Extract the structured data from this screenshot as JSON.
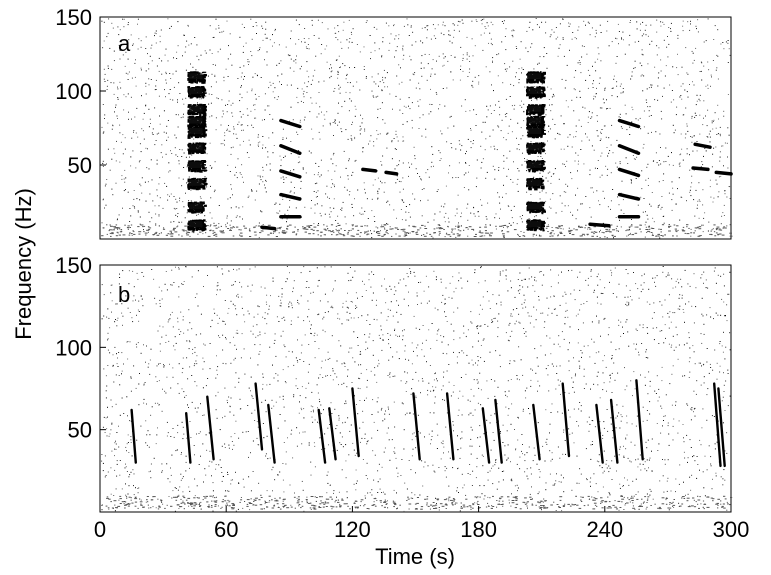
{
  "chart_data": [
    {
      "type": "heatmap",
      "panel_label": "a",
      "ylabel": "Frequency (Hz)",
      "xlabel": "Time (s)",
      "xlim": [
        0,
        300
      ],
      "ylim": [
        0,
        150
      ],
      "yticks": [
        "50",
        "100",
        "150"
      ],
      "ytick_values": [
        50,
        100,
        150
      ],
      "xticks": [],
      "grid": false,
      "colormap": "white-to-black",
      "bursts": [
        {
          "t": 45.5,
          "t_width": 8,
          "f_bands": [
            10,
            22,
            38,
            50,
            62,
            73,
            80,
            88,
            100,
            110
          ],
          "strength": 0.9
        },
        {
          "t": 206.5,
          "t_width": 8,
          "f_bands": [
            10,
            22,
            38,
            50,
            62,
            73,
            80,
            88,
            100,
            110
          ],
          "strength": 0.9
        }
      ],
      "calls": [
        {
          "t0": 77,
          "t1": 83,
          "f0": 8,
          "f1": 7
        },
        {
          "t0": 86,
          "t1": 95,
          "f0": 15,
          "f1": 15
        },
        {
          "t0": 86,
          "t1": 95,
          "f0": 30,
          "f1": 27
        },
        {
          "t0": 86,
          "t1": 95,
          "f0": 46,
          "f1": 42
        },
        {
          "t0": 86,
          "t1": 95,
          "f0": 63,
          "f1": 58
        },
        {
          "t0": 86,
          "t1": 95,
          "f0": 80,
          "f1": 76
        },
        {
          "t0": 125,
          "t1": 131,
          "f0": 47,
          "f1": 46
        },
        {
          "t0": 136,
          "t1": 141,
          "f0": 45,
          "f1": 44
        },
        {
          "t0": 233,
          "t1": 242,
          "f0": 10,
          "f1": 9
        },
        {
          "t0": 247,
          "t1": 256,
          "f0": 15,
          "f1": 15
        },
        {
          "t0": 247,
          "t1": 256,
          "f0": 30,
          "f1": 27
        },
        {
          "t0": 247,
          "t1": 256,
          "f0": 47,
          "f1": 43
        },
        {
          "t0": 247,
          "t1": 256,
          "f0": 63,
          "f1": 58
        },
        {
          "t0": 247,
          "t1": 256,
          "f0": 80,
          "f1": 76
        },
        {
          "t0": 283,
          "t1": 290,
          "f0": 64,
          "f1": 62
        },
        {
          "t0": 282,
          "t1": 289,
          "f0": 48,
          "f1": 47
        },
        {
          "t0": 293,
          "t1": 300,
          "f0": 45,
          "f1": 44
        }
      ]
    },
    {
      "type": "heatmap",
      "panel_label": "b",
      "xlabel": "Time (s)",
      "ylabel": "Frequency (Hz)",
      "xlim": [
        0,
        300
      ],
      "ylim": [
        0,
        150
      ],
      "yticks": [
        "50",
        "100",
        "150"
      ],
      "ytick_values": [
        50,
        100,
        150
      ],
      "xticks": [
        "0",
        "60",
        "120",
        "180",
        "240",
        "300"
      ],
      "xtick_values": [
        0,
        60,
        120,
        180,
        240,
        300
      ],
      "grid": false,
      "colormap": "white-to-black",
      "downsweeps": [
        {
          "t_top": 15,
          "t_bot": 17,
          "f_top": 62,
          "f_bot": 30
        },
        {
          "t_top": 41,
          "t_bot": 43,
          "f_top": 60,
          "f_bot": 30
        },
        {
          "t_top": 51,
          "t_bot": 54,
          "f_top": 70,
          "f_bot": 32
        },
        {
          "t_top": 74,
          "t_bot": 77,
          "f_top": 78,
          "f_bot": 38
        },
        {
          "t_top": 80,
          "t_bot": 83,
          "f_top": 65,
          "f_bot": 30
        },
        {
          "t_top": 104,
          "t_bot": 107,
          "f_top": 62,
          "f_bot": 30
        },
        {
          "t_top": 109,
          "t_bot": 112,
          "f_top": 63,
          "f_bot": 32
        },
        {
          "t_top": 120,
          "t_bot": 123,
          "f_top": 75,
          "f_bot": 34
        },
        {
          "t_top": 149,
          "t_bot": 152,
          "f_top": 72,
          "f_bot": 32
        },
        {
          "t_top": 165,
          "t_bot": 168,
          "f_top": 72,
          "f_bot": 32
        },
        {
          "t_top": 182,
          "t_bot": 185,
          "f_top": 63,
          "f_bot": 30
        },
        {
          "t_top": 188,
          "t_bot": 191,
          "f_top": 68,
          "f_bot": 30
        },
        {
          "t_top": 206,
          "t_bot": 209,
          "f_top": 65,
          "f_bot": 32
        },
        {
          "t_top": 220,
          "t_bot": 223,
          "f_top": 78,
          "f_bot": 34
        },
        {
          "t_top": 236,
          "t_bot": 239,
          "f_top": 65,
          "f_bot": 30
        },
        {
          "t_top": 243,
          "t_bot": 246,
          "f_top": 68,
          "f_bot": 30
        },
        {
          "t_top": 255,
          "t_bot": 258,
          "f_top": 80,
          "f_bot": 32
        },
        {
          "t_top": 292,
          "t_bot": 295,
          "f_top": 78,
          "f_bot": 28
        },
        {
          "t_top": 294,
          "t_bot": 297,
          "f_top": 75,
          "f_bot": 28
        }
      ]
    }
  ]
}
